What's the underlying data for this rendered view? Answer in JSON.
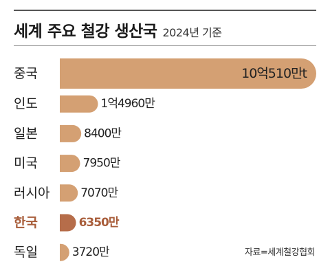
{
  "title": "세계 주요 철강 생산국",
  "subtitle": "2024년 기준",
  "source": "자료=세계철강협회",
  "colors": {
    "bar": "#d4a073",
    "highlight_bar": "#b66d4a",
    "highlight_text": "#a85d3a",
    "text": "#222222"
  },
  "chart_data": {
    "type": "bar",
    "orientation": "horizontal",
    "title": "세계 주요 철강 생산국",
    "subtitle": "2024년 기준",
    "categories": [
      "중국",
      "인도",
      "일본",
      "미국",
      "러시아",
      "한국",
      "독일"
    ],
    "values": [
      100510,
      14960,
      8400,
      7950,
      7070,
      6350,
      3720
    ],
    "unit": "만t",
    "value_labels": [
      "10억510만t",
      "1억4960만",
      "8400만",
      "7950만",
      "7070만",
      "6350만",
      "3720만"
    ],
    "highlight": "한국",
    "grid": false,
    "legend": "none"
  }
}
